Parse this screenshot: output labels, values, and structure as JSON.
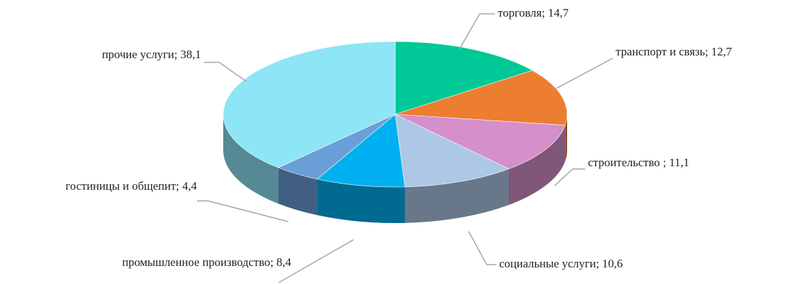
{
  "chart_data": {
    "type": "pie3d",
    "values": [
      14.7,
      12.7,
      11.1,
      10.6,
      8.4,
      4.4,
      38.1
    ],
    "value_labels": [
      "торговля; 14,7",
      "транспорт и связь; 12,7",
      "строительство ; 11,1",
      "социальные  услуги;  10,6",
      "промышленное производство; 8,4",
      "гостиницы и общепит; 4,4",
      "прочие услуги;  38,1"
    ],
    "colors": [
      "#00c896",
      "#ed7d31",
      "#d58fca",
      "#adc8e6",
      "#00b0f0",
      "#6a9fd8",
      "#8ee5f5"
    ]
  }
}
